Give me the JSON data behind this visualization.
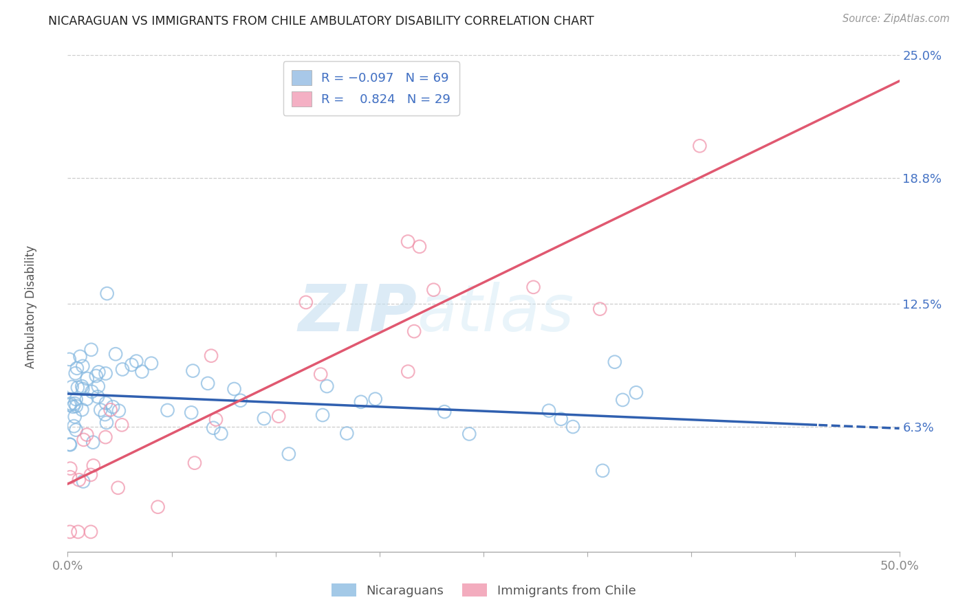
{
  "title": "NICARAGUAN VS IMMIGRANTS FROM CHILE AMBULATORY DISABILITY CORRELATION CHART",
  "source": "Source: ZipAtlas.com",
  "ylabel": "Ambulatory Disability",
  "x_min": 0.0,
  "x_max": 50.0,
  "y_min": 0.0,
  "y_max": 25.0,
  "y_ticks": [
    6.3,
    12.5,
    18.8,
    25.0
  ],
  "y_tick_labels": [
    "6.3%",
    "12.5%",
    "18.8%",
    "25.0%"
  ],
  "x_tick_labels": [
    "0.0%",
    "50.0%"
  ],
  "blue_color": "#85b8e0",
  "pink_color": "#f090a8",
  "blue_line_color": "#3060b0",
  "pink_line_color": "#e05870",
  "bg_color": "#ffffff",
  "watermark_zip": "ZIP",
  "watermark_atlas": "atlas",
  "grid_color": "#cccccc",
  "tick_color": "#888888",
  "label_color": "#4472c4",
  "title_color": "#222222",
  "source_color": "#999999",
  "legend_blue_patch": "#a8c8e8",
  "legend_pink_patch": "#f4b0c4",
  "bottom_legend_blue": "#85b8e0",
  "bottom_legend_pink": "#f090a8"
}
